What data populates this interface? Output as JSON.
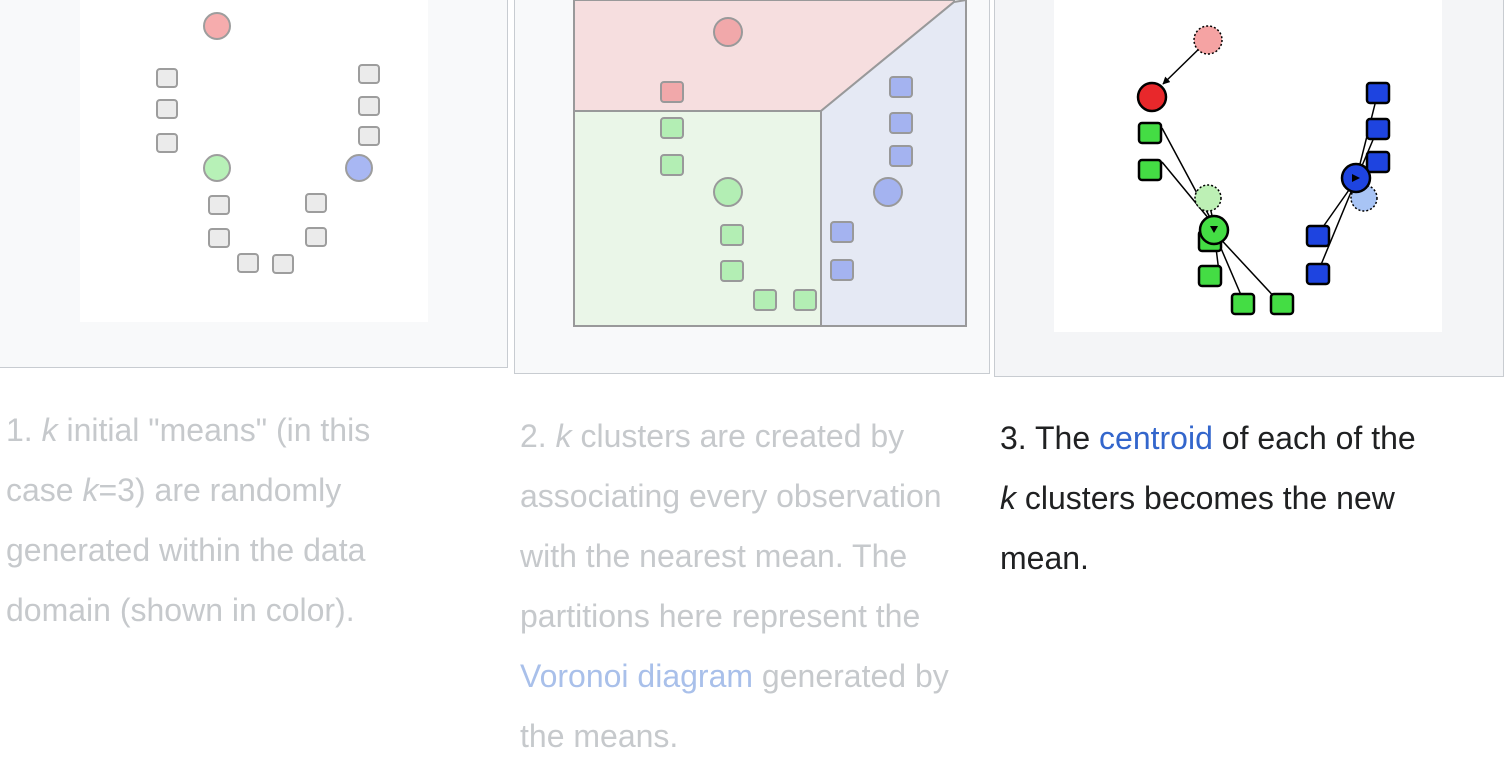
{
  "steps": [
    {
      "number": "1.",
      "k": "k",
      "line1_rest": " initial \"means\" (in this",
      "line2_a": "case ",
      "line2_k": "k",
      "line2_b": "=3) are randomly",
      "line3": "generated within the data",
      "line4": "domain (shown in color)."
    },
    {
      "number": "2.",
      "k": "k",
      "line1_rest": " clusters are created by",
      "line2": "associating every observation",
      "line3": "with the nearest mean. The",
      "line4": "partitions here represent the",
      "link": "Voronoi diagram",
      "line5_rest": " generated by",
      "line6": "the means."
    },
    {
      "number": "3.",
      "line1_a": " The ",
      "link": "centroid",
      "line1_b": " of each of the",
      "k": "k",
      "line2_rest": " clusters becomes the new",
      "line3": "mean."
    }
  ],
  "colors": {
    "red": "#e8282b",
    "green": "#44dd44",
    "blue": "#1e44e0",
    "gray": "#cccccc",
    "region_red": "#f5b5b5",
    "region_green": "#d6f2cc",
    "region_blue": "#c7d0ec",
    "link": "#3366cc"
  }
}
